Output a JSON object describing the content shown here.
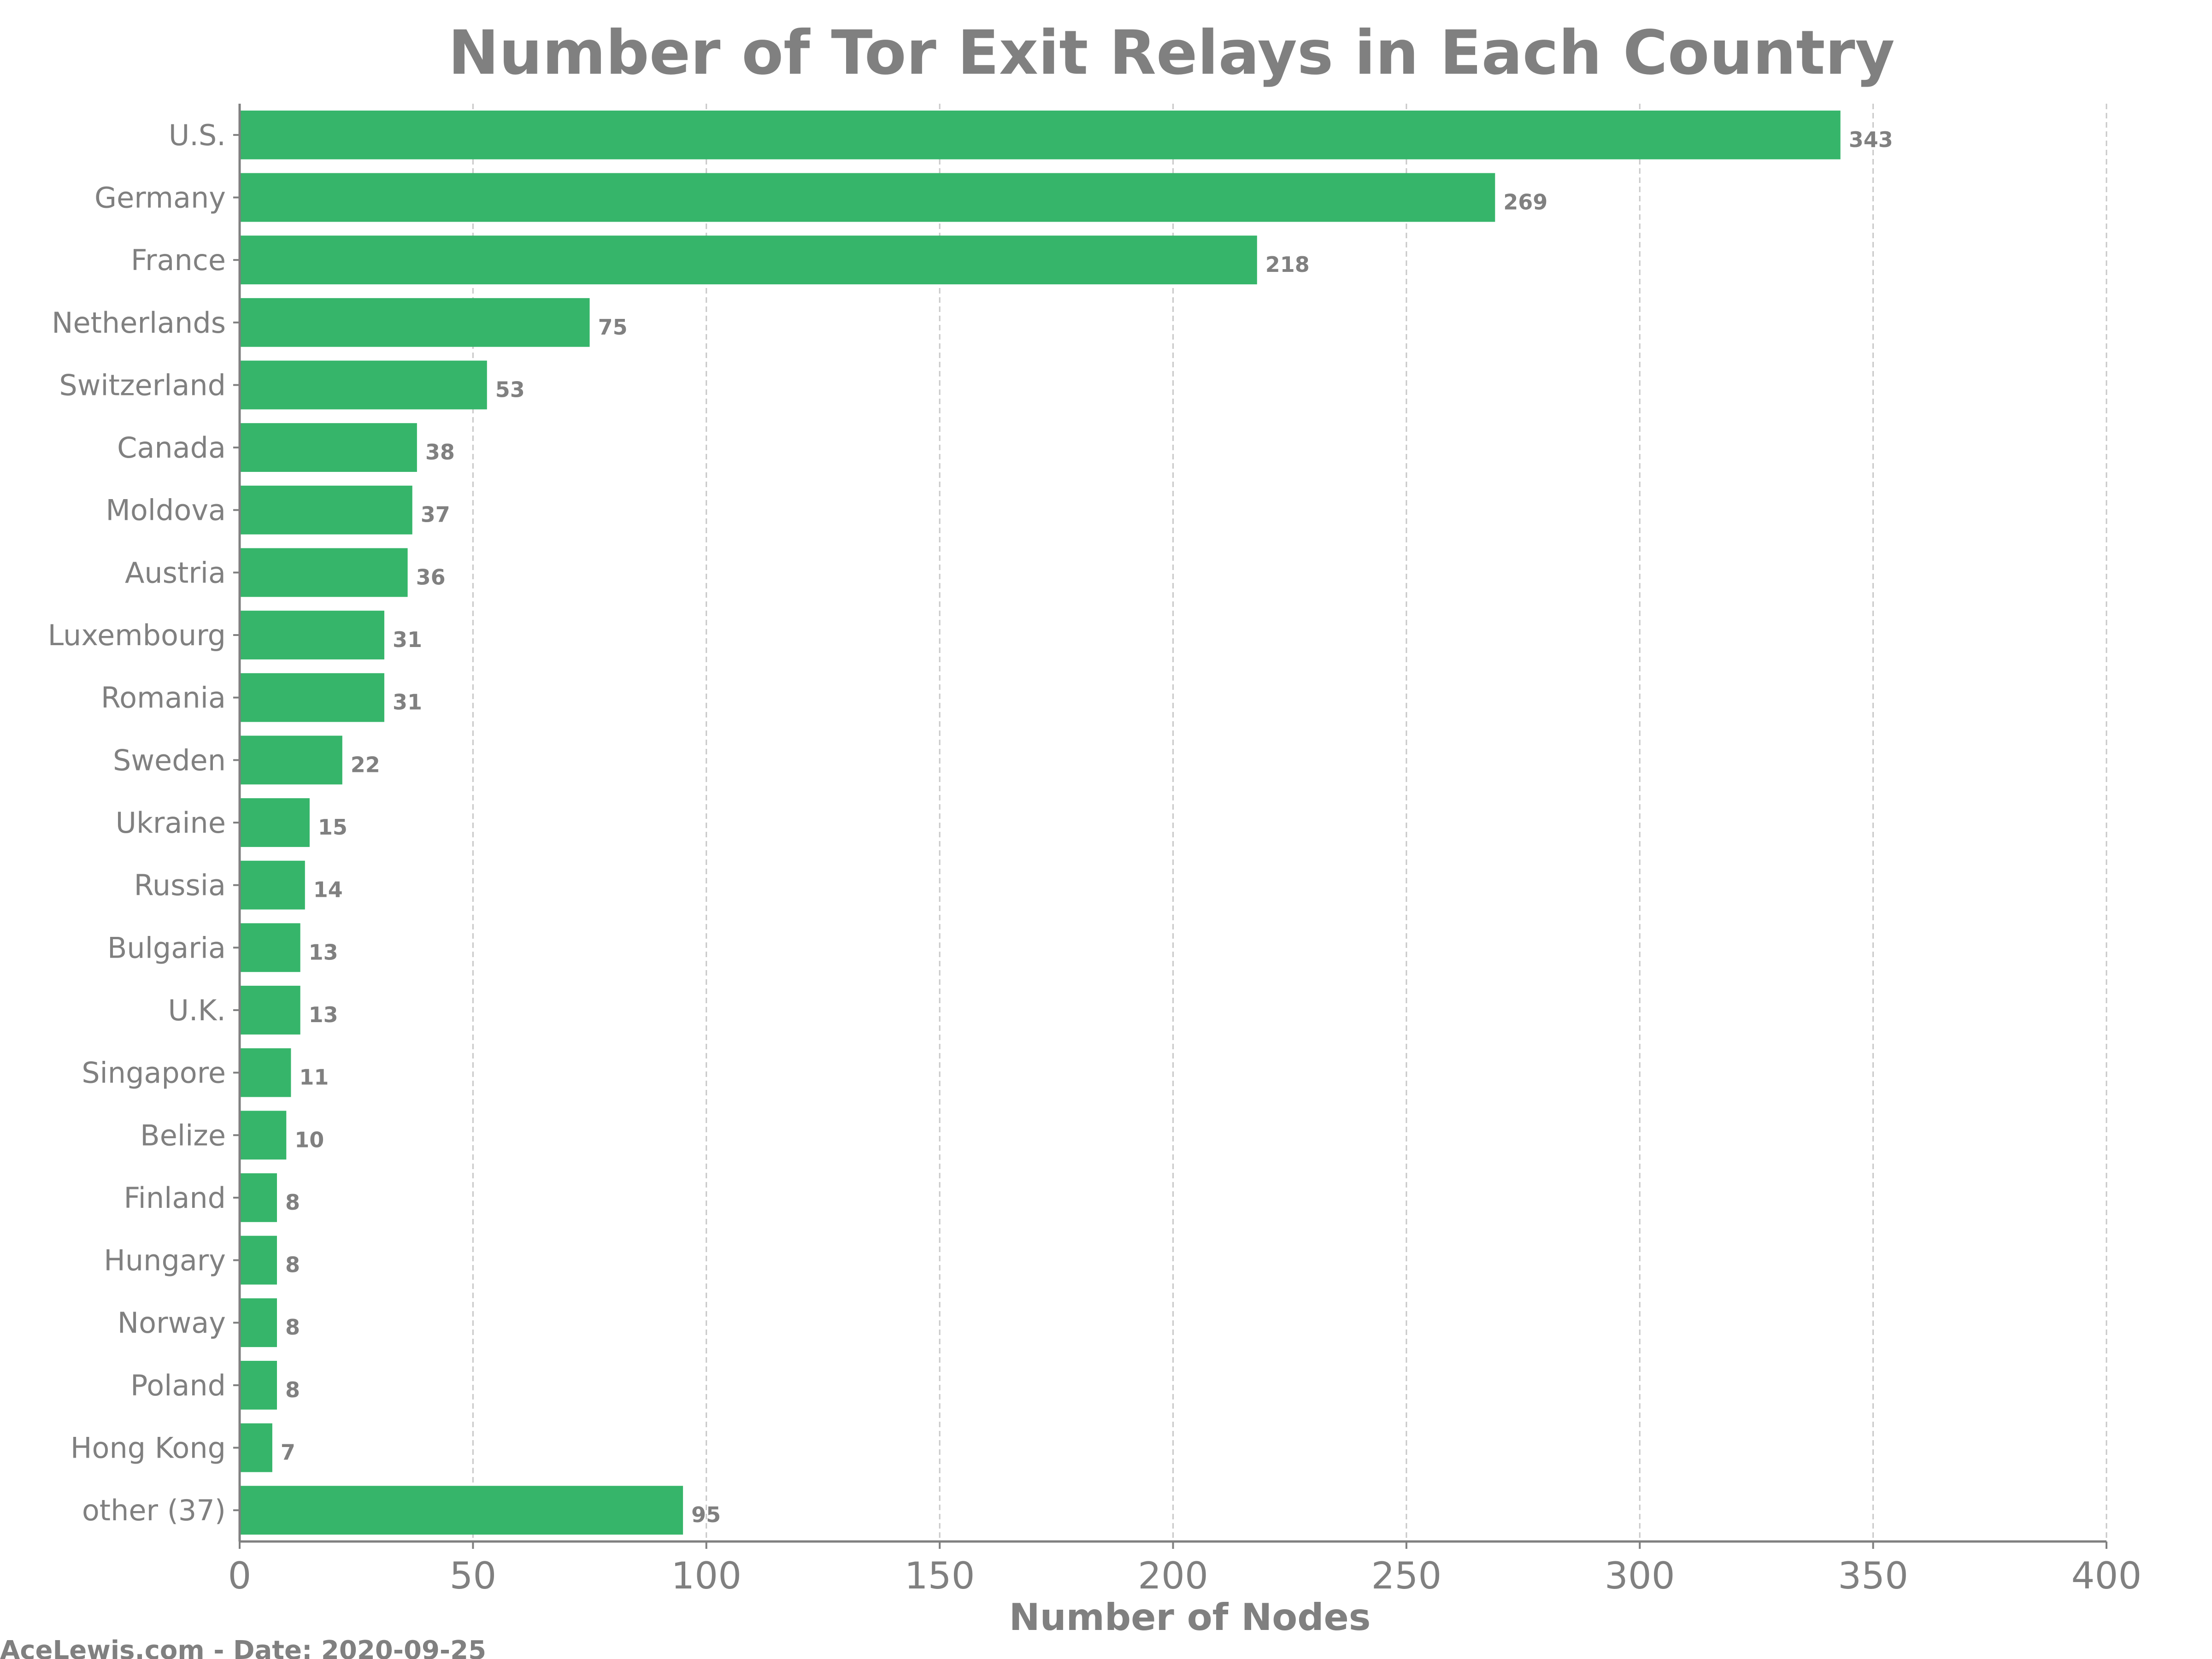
{
  "chart_data": {
    "type": "bar",
    "orientation": "horizontal",
    "title": "Number of Tor Exit Relays in Each Country",
    "xlabel": "Number of Nodes",
    "ylabel": "",
    "xlim": [
      0,
      400
    ],
    "xticks": [
      "0",
      "50",
      "100",
      "150",
      "200",
      "250",
      "300",
      "350",
      "400"
    ],
    "categories": [
      "U.S.",
      "Germany",
      "France",
      "Netherlands",
      "Switzerland",
      "Canada",
      "Moldova",
      "Austria",
      "Luxembourg",
      "Romania",
      "Sweden",
      "Ukraine",
      "Russia",
      "Bulgaria",
      "U.K.",
      "Singapore",
      "Belize",
      "Finland",
      "Hungary",
      "Norway",
      "Poland",
      "Hong Kong",
      "other (37)"
    ],
    "values": [
      343,
      269,
      218,
      75,
      53,
      38,
      37,
      36,
      31,
      31,
      22,
      15,
      14,
      13,
      13,
      11,
      10,
      8,
      8,
      8,
      8,
      7,
      95
    ],
    "grid": "vertical dashed",
    "bar_color": "#36b56a",
    "text_color": "#808080",
    "footer": "AceLewis.com - Date: 2020-09-25"
  }
}
